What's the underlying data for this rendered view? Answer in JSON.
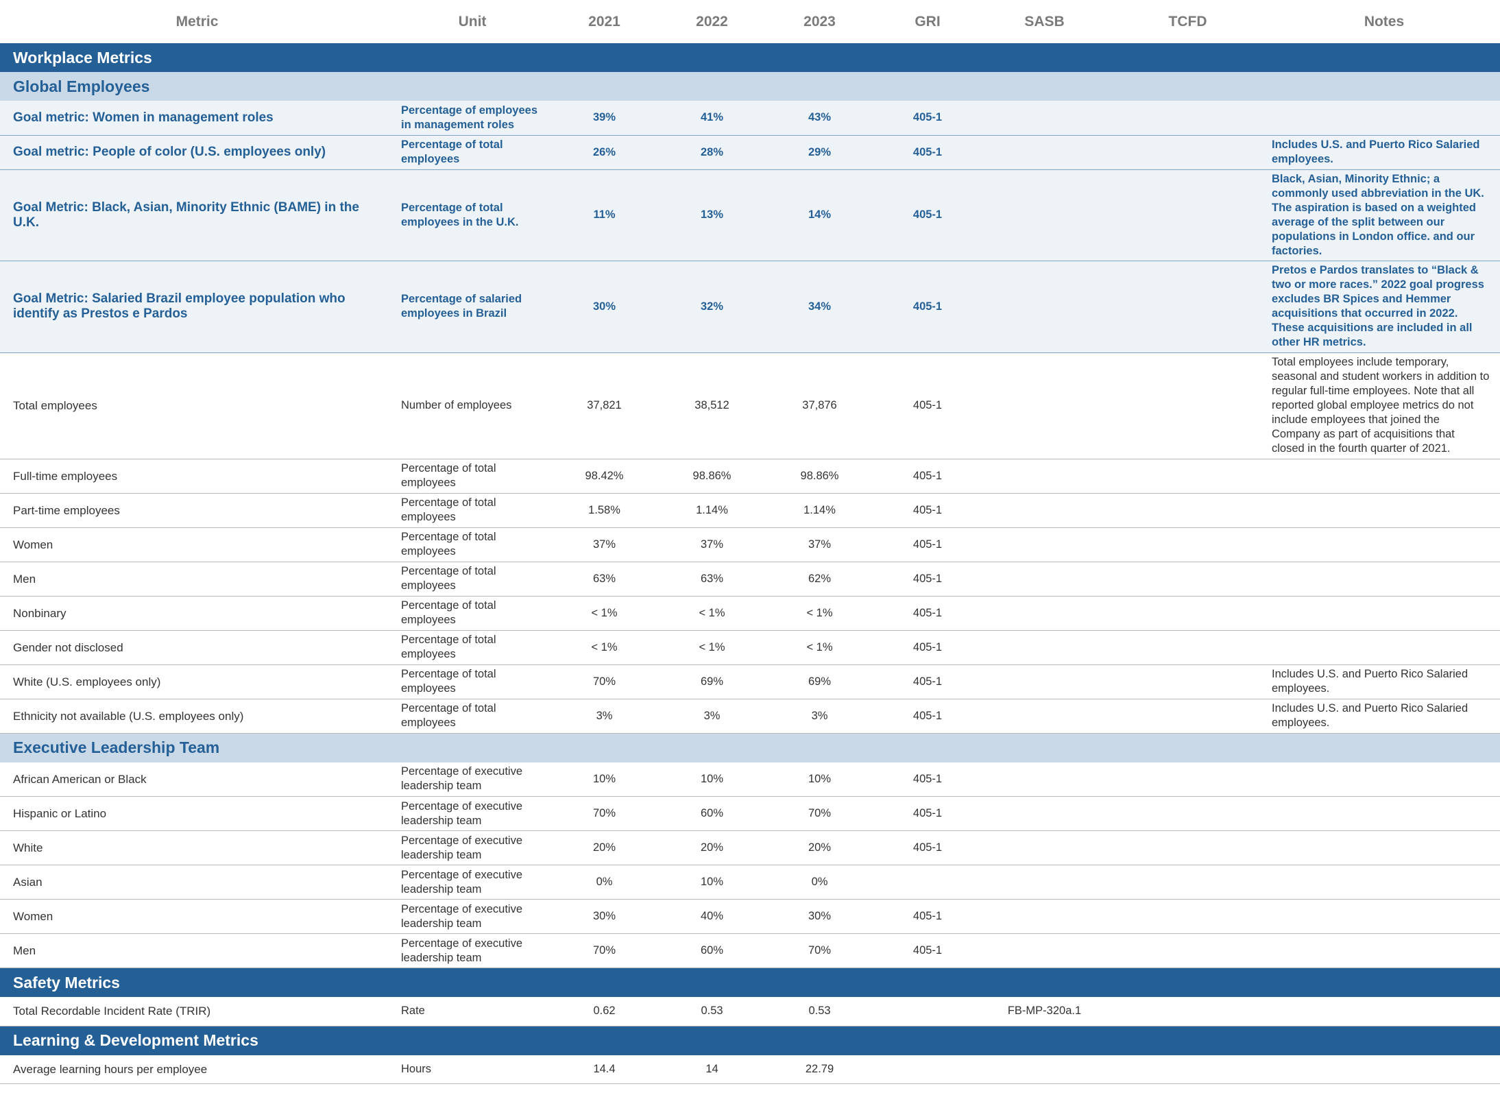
{
  "columns": {
    "metric": "Metric",
    "unit": "Unit",
    "y2021": "2021",
    "y2022": "2022",
    "y2023": "2023",
    "gri": "GRI",
    "sasb": "SASB",
    "tcfd": "TCFD",
    "notes": "Notes"
  },
  "sections": {
    "workplace": "Workplace Metrics",
    "global": "Global Employees",
    "exec": "Executive Leadership Team",
    "safety": "Safety Metrics",
    "learning": "Learning & Development Metrics"
  },
  "global_rows": [
    {
      "metric": "Goal metric: Women in management roles",
      "unit": "Percentage of employees in management roles",
      "y2021": "39%",
      "y2022": "41%",
      "y2023": "43%",
      "gri": "405-1",
      "sasb": "",
      "tcfd": "",
      "notes": ""
    },
    {
      "metric": "Goal metric: People of color (U.S. employees only)",
      "unit": "Percentage of total employees",
      "y2021": "26%",
      "y2022": "28%",
      "y2023": "29%",
      "gri": "405-1",
      "sasb": "",
      "tcfd": "",
      "notes": "Includes U.S. and Puerto Rico Salaried employees."
    },
    {
      "metric": "Goal Metric: Black, Asian, Minority Ethnic (BAME) in the U.K.",
      "unit": "Percentage of total employees in the U.K.",
      "y2021": "11%",
      "y2022": "13%",
      "y2023": "14%",
      "gri": "405-1",
      "sasb": "",
      "tcfd": "",
      "notes": "Black, Asian, Minority Ethnic; a commonly used abbreviation in the UK. The aspiration is based on a weighted average of the split between our populations in London office. and our factories."
    },
    {
      "metric": "Goal Metric: Salaried Brazil employee population who identify as Prestos e Pardos",
      "unit": "Percentage of salaried employees in Brazil",
      "y2021": "30%",
      "y2022": "32%",
      "y2023": "34%",
      "gri": "405-1",
      "sasb": "",
      "tcfd": "",
      "notes": "Pretos e Pardos translates to “Black & two or more races.” 2022 goal progress excludes BR Spices and Hemmer acquisitions that occurred in 2022. These acquisitions are included in all other HR metrics."
    },
    {
      "metric": "Total employees",
      "unit": "Number of employees",
      "y2021": "37,821",
      "y2022": "38,512",
      "y2023": "37,876",
      "gri": "405-1",
      "sasb": "",
      "tcfd": "",
      "notes": "Total employees include temporary, seasonal and student workers in addition to regular full-time employees. Note that all reported global employee metrics do not include employees that joined the Company as part of acquisitions that closed in the fourth quarter of 2021."
    },
    {
      "metric": "Full-time employees",
      "unit": "Percentage of total employees",
      "y2021": "98.42%",
      "y2022": "98.86%",
      "y2023": "98.86%",
      "gri": "405-1",
      "sasb": "",
      "tcfd": "",
      "notes": ""
    },
    {
      "metric": "Part-time employees",
      "unit": "Percentage of total employees",
      "y2021": "1.58%",
      "y2022": "1.14%",
      "y2023": "1.14%",
      "gri": "405-1",
      "sasb": "",
      "tcfd": "",
      "notes": ""
    },
    {
      "metric": "Women",
      "unit": "Percentage of total employees",
      "y2021": "37%",
      "y2022": "37%",
      "y2023": "37%",
      "gri": "405-1",
      "sasb": "",
      "tcfd": "",
      "notes": ""
    },
    {
      "metric": "Men",
      "unit": "Percentage of total employees",
      "y2021": "63%",
      "y2022": "63%",
      "y2023": "62%",
      "gri": "405-1",
      "sasb": "",
      "tcfd": "",
      "notes": ""
    },
    {
      "metric": "Nonbinary",
      "unit": "Percentage of total employees",
      "y2021": "< 1%",
      "y2022": "< 1%",
      "y2023": "< 1%",
      "gri": "405-1",
      "sasb": "",
      "tcfd": "",
      "notes": ""
    },
    {
      "metric": "Gender not disclosed",
      "unit": "Percentage of total employees",
      "y2021": "< 1%",
      "y2022": "< 1%",
      "y2023": "< 1%",
      "gri": "405-1",
      "sasb": "",
      "tcfd": "",
      "notes": ""
    },
    {
      "metric": "White (U.S. employees only)",
      "unit": "Percentage of total employees",
      "y2021": "70%",
      "y2022": "69%",
      "y2023": "69%",
      "gri": "405-1",
      "sasb": "",
      "tcfd": "",
      "notes": "Includes U.S. and Puerto Rico Salaried employees."
    },
    {
      "metric": "Ethnicity not available (U.S. employees only)",
      "unit": "Percentage of total employees",
      "y2021": "3%",
      "y2022": "3%",
      "y2023": "3%",
      "gri": "405-1",
      "sasb": "",
      "tcfd": "",
      "notes": "Includes U.S. and Puerto Rico Salaried employees."
    }
  ],
  "exec_rows": [
    {
      "metric": "African American or Black",
      "unit": "Percentage of executive leadership team",
      "y2021": "10%",
      "y2022": "10%",
      "y2023": "10%",
      "gri": "405-1",
      "sasb": "",
      "tcfd": "",
      "notes": ""
    },
    {
      "metric": "Hispanic or Latino",
      "unit": "Percentage of executive leadership team",
      "y2021": "70%",
      "y2022": "60%",
      "y2023": "70%",
      "gri": "405-1",
      "sasb": "",
      "tcfd": "",
      "notes": ""
    },
    {
      "metric": "White",
      "unit": "Percentage of executive leadership team",
      "y2021": "20%",
      "y2022": "20%",
      "y2023": "20%",
      "gri": "405-1",
      "sasb": "",
      "tcfd": "",
      "notes": ""
    },
    {
      "metric": "Asian",
      "unit": "Percentage of executive leadership team",
      "y2021": "0%",
      "y2022": "10%",
      "y2023": "0%",
      "gri": "",
      "sasb": "",
      "tcfd": "",
      "notes": ""
    },
    {
      "metric": "Women",
      "unit": "Percentage of executive leadership team",
      "y2021": "30%",
      "y2022": "40%",
      "y2023": "30%",
      "gri": "405-1",
      "sasb": "",
      "tcfd": "",
      "notes": ""
    },
    {
      "metric": "Men",
      "unit": "Percentage of executive leadership team",
      "y2021": "70%",
      "y2022": "60%",
      "y2023": "70%",
      "gri": "405-1",
      "sasb": "",
      "tcfd": "",
      "notes": ""
    }
  ],
  "safety_rows": [
    {
      "metric": "Total Recordable Incident Rate (TRIR)",
      "unit": "Rate",
      "y2021": "0.62",
      "y2022": "0.53",
      "y2023": "0.53",
      "gri": "",
      "sasb": "FB-MP-320a.1",
      "tcfd": "",
      "notes": ""
    }
  ],
  "learning_rows": [
    {
      "metric": "Average learning hours per employee",
      "unit": "Hours",
      "y2021": "14.4",
      "y2022": "14",
      "y2023": "22.79",
      "gri": "",
      "sasb": "",
      "tcfd": "",
      "notes": ""
    }
  ]
}
